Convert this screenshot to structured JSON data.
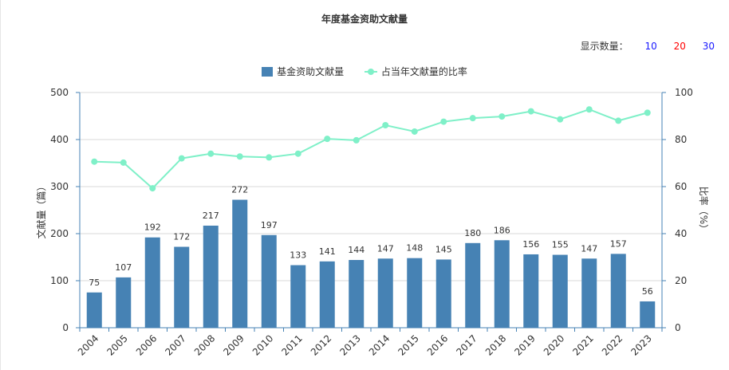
{
  "title": "年度基金资助文献量",
  "display_count": {
    "label": "显示数量：",
    "options": [
      {
        "label": "10",
        "color": "#1a1aff"
      },
      {
        "label": "20",
        "color": "#ff0000"
      },
      {
        "label": "30",
        "color": "#1a1aff"
      }
    ]
  },
  "colors": {
    "bar": "#4682b4",
    "line": "#7ff0c8",
    "axis": "#4682b4",
    "grid": "#d9d9d9",
    "text": "#333333"
  },
  "chart_data": {
    "type": "bar",
    "title": "年度基金资助文献量",
    "categories": [
      "2004",
      "2005",
      "2006",
      "2007",
      "2008",
      "2009",
      "2010",
      "2011",
      "2012",
      "2013",
      "2014",
      "2015",
      "2016",
      "2017",
      "2018",
      "2019",
      "2020",
      "2021",
      "2022",
      "2023"
    ],
    "series": [
      {
        "name": "基金资助文献量",
        "type": "bar",
        "axis": "left",
        "values": [
          75,
          107,
          192,
          172,
          217,
          272,
          197,
          133,
          141,
          144,
          147,
          148,
          145,
          180,
          186,
          156,
          155,
          147,
          157,
          56
        ]
      },
      {
        "name": "占当年文献量的比率",
        "type": "line",
        "axis": "right",
        "values": [
          70.6,
          70.2,
          59.3,
          72.0,
          74.0,
          72.8,
          72.4,
          74.0,
          80.3,
          79.7,
          86.1,
          83.4,
          87.6,
          89.1,
          89.8,
          92.0,
          88.6,
          92.8,
          88.0,
          91.4
        ]
      }
    ],
    "ylabel": "文献量（篇）",
    "y2label": "比率（%）",
    "ylim": [
      0,
      500
    ],
    "y2lim": [
      0,
      100
    ],
    "yticks": [
      "0",
      "100",
      "200",
      "300",
      "400",
      "500"
    ],
    "y2ticks": [
      "0",
      "20",
      "40",
      "60",
      "80",
      "100"
    ],
    "grid": true,
    "legend_position": "top-center"
  }
}
